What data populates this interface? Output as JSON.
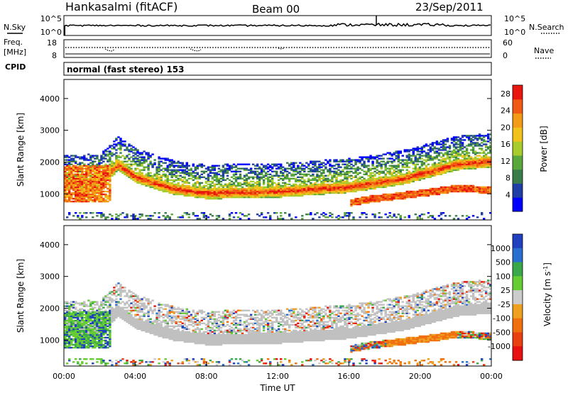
{
  "header": {
    "station": "Hankasalmi (fitACF)",
    "beam": "Beam 00",
    "date": "23/Sep/2011"
  },
  "side_labels": {
    "nsky": "N.Sky",
    "freq_line1": "Freq.",
    "freq_line2": "[MHz]",
    "cpid": "CPID",
    "nsearch": "N.Search",
    "nave": "Nave"
  },
  "cpid_text": "normal (fast stereo) 153",
  "noise_panel": {
    "left_ticks": [
      "10^5",
      "10^0"
    ],
    "right_ticks": [
      "10^5",
      "10^0"
    ]
  },
  "freq_panel": {
    "left_ticks": [
      "18",
      "8"
    ],
    "right_ticks": [
      "60",
      "0"
    ]
  },
  "colors": {
    "power": [
      "#0000ff",
      "#1f3fa6",
      "#3a7d4b",
      "#5aa83c",
      "#a8cc2c",
      "#f2c21c",
      "#f39a16",
      "#f15a12",
      "#e8160e"
    ],
    "velocity": [
      "#2040c0",
      "#2a6fd0",
      "#3aa84a",
      "#66cc33",
      "#cccccc",
      "#f0a020",
      "#f07010",
      "#e84010",
      "#e81010"
    ],
    "ground_scatter": "#c0c0c0"
  },
  "chart_data": [
    {
      "type": "heatmap",
      "title": "",
      "ylabel": "Slant Range [km]",
      "xlabel": "Time UT",
      "x_ticks": [
        "00:00",
        "04:00",
        "08:00",
        "12:00",
        "16:00",
        "20:00",
        "00:00"
      ],
      "y_ticks": [
        "1000",
        "2000",
        "3000",
        "4000"
      ],
      "xlim_hours": [
        0,
        24
      ],
      "ylim_km": [
        180,
        4600
      ],
      "colorbar": {
        "label": "Power [dB]",
        "ticks": [
          "4",
          "8",
          "12",
          "16",
          "20",
          "24",
          "28"
        ],
        "range": [
          0,
          30
        ]
      },
      "main_band_km_by_hour": [
        [
          0,
          1300
        ],
        [
          2,
          1350
        ],
        [
          3,
          1900
        ],
        [
          4,
          1500
        ],
        [
          6,
          1150
        ],
        [
          8,
          1000
        ],
        [
          12,
          1050
        ],
        [
          16,
          1200
        ],
        [
          19,
          1450
        ],
        [
          22,
          1900
        ],
        [
          24,
          2000
        ]
      ],
      "second_band_km_by_hour": [
        [
          16,
          700
        ],
        [
          17,
          800
        ],
        [
          20,
          1000
        ],
        [
          22,
          1150
        ],
        [
          24,
          1100
        ]
      ]
    },
    {
      "type": "heatmap",
      "title": "",
      "ylabel": "Slant Range [km]",
      "xlabel": "Time UT",
      "x_ticks": [
        "00:00",
        "04:00",
        "08:00",
        "12:00",
        "16:00",
        "20:00",
        "00:00"
      ],
      "y_ticks": [
        "1000",
        "2000",
        "3000",
        "4000"
      ],
      "xlim_hours": [
        0,
        24
      ],
      "ylim_km": [
        180,
        4600
      ],
      "colorbar": {
        "label": "Velocity [m s^-1]",
        "ticks": [
          "1000",
          "500",
          "100",
          "25",
          "-25",
          "-100",
          "-500",
          "-1000"
        ]
      }
    }
  ],
  "axis": {
    "xlabel": "Time UT"
  }
}
